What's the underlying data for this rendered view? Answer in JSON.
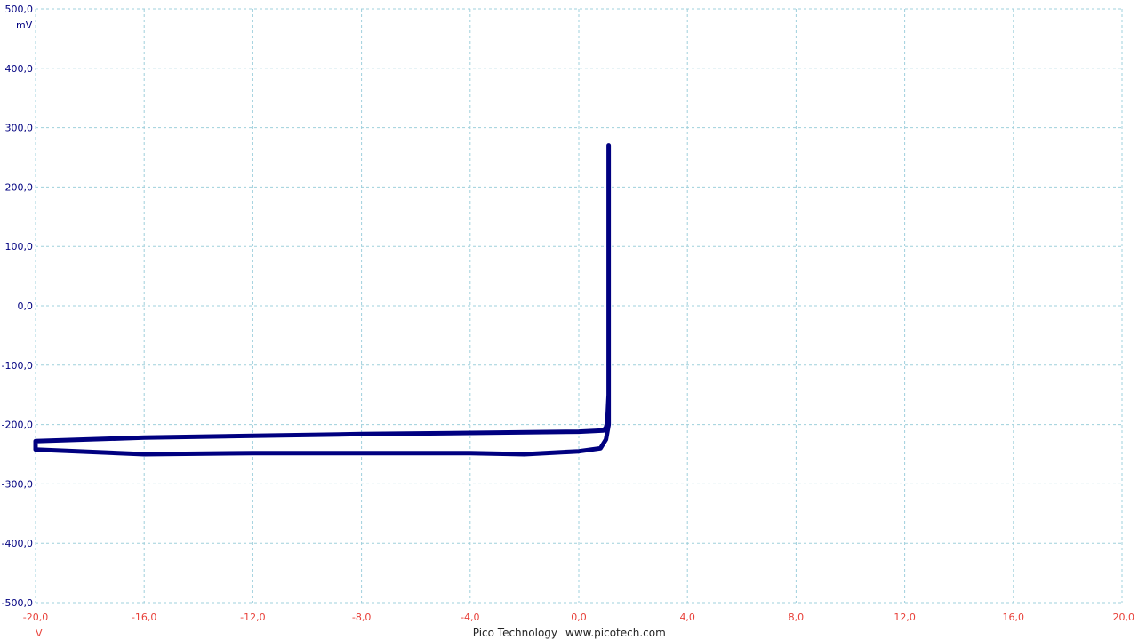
{
  "chart_data": {
    "type": "line",
    "title": "",
    "xunit": "V",
    "yunit": "mV",
    "xlim": [
      -20,
      20
    ],
    "ylim": [
      -500,
      500
    ],
    "x_ticks": [
      "-20,0",
      "-16,0",
      "-12,0",
      "-8,0",
      "-4,0",
      "0,0",
      "4,0",
      "8,0",
      "12,0",
      "16,0",
      "20,0"
    ],
    "y_ticks": [
      "500,0",
      "400,0",
      "300,0",
      "200,0",
      "100,0",
      "0,0",
      "-100,0",
      "-200,0",
      "-300,0",
      "-400,0",
      "-500,0"
    ],
    "grid": true,
    "series": [
      {
        "color": "#000080",
        "points": [
          [
            1.1,
            270
          ],
          [
            1.1,
            120
          ],
          [
            1.1,
            0
          ],
          [
            1.1,
            -150
          ],
          [
            1.05,
            -195
          ],
          [
            1.0,
            -205
          ],
          [
            0.9,
            -210
          ],
          [
            0.0,
            -212
          ],
          [
            -4.0,
            -214
          ],
          [
            -8.0,
            -216
          ],
          [
            -12.0,
            -219
          ],
          [
            -16.0,
            -222
          ],
          [
            -20.0,
            -228
          ],
          [
            -20.0,
            -242
          ],
          [
            -16.0,
            -250
          ],
          [
            -12.0,
            -248
          ],
          [
            -8.0,
            -248
          ],
          [
            -4.0,
            -248
          ],
          [
            -2.0,
            -250
          ],
          [
            0.0,
            -245
          ],
          [
            0.8,
            -240
          ],
          [
            1.0,
            -225
          ],
          [
            1.1,
            -200
          ],
          [
            1.1,
            -100
          ],
          [
            1.1,
            100
          ],
          [
            1.1,
            270
          ]
        ]
      }
    ]
  },
  "footer": {
    "brand": "Pico Technology",
    "url": "www.picotech.com"
  }
}
